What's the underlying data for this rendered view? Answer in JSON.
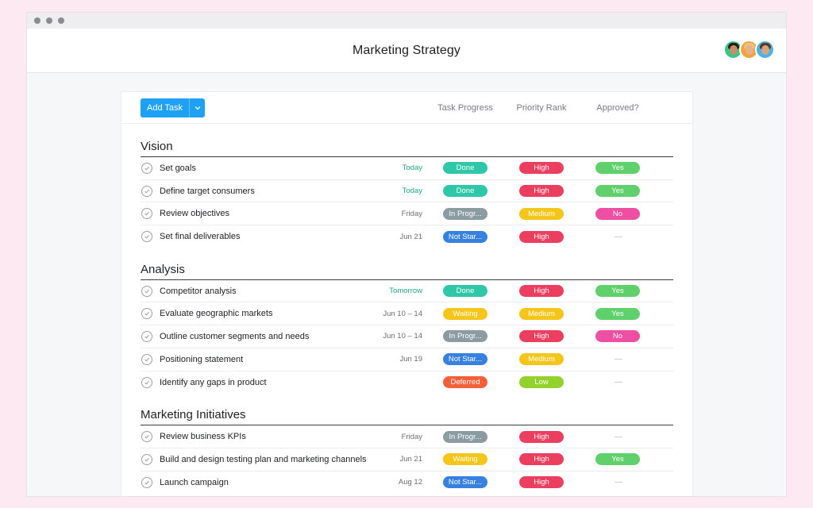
{
  "window": {
    "title": "Marketing Strategy"
  },
  "toolbar": {
    "add_task_label": "Add Task",
    "columns": [
      "Task Progress",
      "Priority Rank",
      "Approved?"
    ]
  },
  "colors": {
    "Done": "#2ec7a7",
    "In Progress": "#8a9ba2",
    "Not Started": "#3680e0",
    "Waiting": "#f6c519",
    "Deferred": "#f5603a",
    "High": "#ec3e5e",
    "Medium": "#f6c519",
    "Low": "#93d12c",
    "Yes": "#5fd06c",
    "No": "#ee4fa3"
  },
  "sections": [
    {
      "title": "Vision",
      "tasks": [
        {
          "name": "Set goals",
          "due": "Today",
          "due_green": true,
          "progress": "Done",
          "progress_label": "Done",
          "priority": "High",
          "approved": "Yes"
        },
        {
          "name": "Define target consumers",
          "due": "Today",
          "due_green": true,
          "progress": "Done",
          "progress_label": "Done",
          "priority": "High",
          "approved": "Yes"
        },
        {
          "name": "Review objectives",
          "due": "Friday",
          "due_green": false,
          "progress": "In Progress",
          "progress_label": "In Progr...",
          "priority": "Medium",
          "approved": "No"
        },
        {
          "name": "Set final deliverables",
          "due": "Jun 21",
          "due_green": false,
          "progress": "Not Started",
          "progress_label": "Not Star...",
          "priority": "High",
          "approved": ""
        }
      ]
    },
    {
      "title": "Analysis",
      "tasks": [
        {
          "name": "Competitor analysis",
          "due": "Tomorrow",
          "due_green": true,
          "progress": "Done",
          "progress_label": "Done",
          "priority": "High",
          "approved": "Yes"
        },
        {
          "name": "Evaluate geographic markets",
          "due": "Jun 10 – 14",
          "due_green": false,
          "progress": "Waiting",
          "progress_label": "Waiting",
          "priority": "Medium",
          "approved": "Yes"
        },
        {
          "name": "Outline customer segments and needs",
          "due": "Jun 10 – 14",
          "due_green": false,
          "progress": "In Progress",
          "progress_label": "In Progr...",
          "priority": "High",
          "approved": "No"
        },
        {
          "name": "Positioning statement",
          "due": "Jun 19",
          "due_green": false,
          "progress": "Not Started",
          "progress_label": "Not Star...",
          "priority": "Medium",
          "approved": ""
        },
        {
          "name": "Identify any gaps in product",
          "due": "",
          "due_green": false,
          "progress": "Deferred",
          "progress_label": "Deferred",
          "priority": "Low",
          "approved": ""
        }
      ]
    },
    {
      "title": "Marketing Initiatives",
      "tasks": [
        {
          "name": "Review business KPIs",
          "due": "Friday",
          "due_green": false,
          "progress": "In Progress",
          "progress_label": "In Progr...",
          "priority": "High",
          "approved": ""
        },
        {
          "name": "Build and design testing plan and marketing channels",
          "due": "Jun 21",
          "due_green": false,
          "progress": "Waiting",
          "progress_label": "Waiting",
          "priority": "High",
          "approved": "Yes"
        },
        {
          "name": "Launch campaign",
          "due": "Aug 12",
          "due_green": false,
          "progress": "Not Started",
          "progress_label": "Not Star...",
          "priority": "High",
          "approved": ""
        }
      ]
    }
  ],
  "empty_marker": "—"
}
